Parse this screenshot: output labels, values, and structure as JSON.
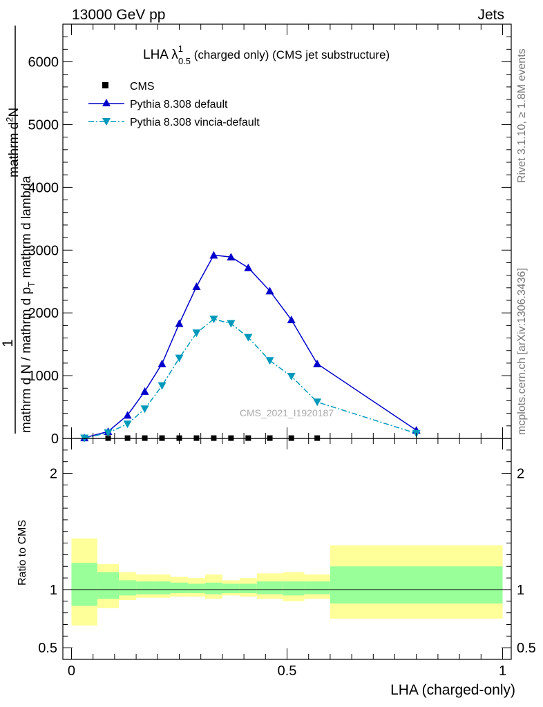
{
  "header": {
    "energy_label": "13000 GeV pp",
    "process_label": "Jets",
    "analysis_tag": "CMS_2021_I1920187",
    "rivet_version": "Rivet 3.1.10, ≥ 1.8M events",
    "source_label": "mcplots.cern.ch [arXiv:1306.3436]"
  },
  "title": {
    "main": "LHA λ",
    "sup": "1",
    "sub": "0.5",
    "rest": " (charged only) (CMS jet substructure)"
  },
  "axes": {
    "ylabel_prefix": "1",
    "ylabel_numerator_top": "mathrm d",
    "ylabel_numerator_super": "2",
    "ylabel_numerator_end": "N",
    "ylabel_denominator": "mathrm d N / mathrm d p",
    "ylabel_denominator_sub": "T",
    "ylabel_denominator_end": " mathrm d lambda",
    "ratio_ylabel": "Ratio to CMS",
    "xlabel": "LHA (charged-only)"
  },
  "legend": {
    "cms": "CMS",
    "pythia_default": "Pythia 8.308 default",
    "pythia_vincia": "Pythia 8.308 vincia-default"
  },
  "colors": {
    "pythia_default": "#0000cc",
    "pythia_vincia": "#0099bb",
    "band_inner": "#99ff99",
    "band_outer": "#ffff99",
    "cms": "#000000"
  },
  "chart_data": {
    "type": "line",
    "main_panel": {
      "ylim": [
        0,
        6600
      ],
      "xlim": [
        -0.02,
        1.02
      ],
      "yticks": [
        0,
        1000,
        2000,
        3000,
        4000,
        5000,
        6000
      ],
      "ytick_labels": [
        "0",
        "1000",
        "2000",
        "3000",
        "4000",
        "5000",
        "6000"
      ],
      "series": [
        {
          "name": "CMS",
          "marker": "square",
          "x": [
            0.085,
            0.13,
            0.17,
            0.21,
            0.25,
            0.29,
            0.33,
            0.37,
            0.41,
            0.46,
            0.51,
            0.57
          ],
          "y": [
            5,
            5,
            5,
            5,
            5,
            5,
            5,
            5,
            5,
            5,
            5,
            5
          ]
        },
        {
          "name": "Pythia 8.308 default",
          "marker": "triangle-up",
          "style": "solid",
          "x": [
            0.03,
            0.085,
            0.13,
            0.17,
            0.21,
            0.25,
            0.29,
            0.33,
            0.37,
            0.41,
            0.46,
            0.51,
            0.57,
            0.8
          ],
          "y": [
            10,
            110,
            370,
            750,
            1190,
            1830,
            2420,
            2920,
            2890,
            2720,
            2350,
            1890,
            1190,
            130
          ]
        },
        {
          "name": "Pythia 8.308 vincia-default",
          "marker": "triangle-down",
          "style": "dashdot",
          "x": [
            0.03,
            0.085,
            0.13,
            0.17,
            0.21,
            0.25,
            0.29,
            0.33,
            0.37,
            0.41,
            0.46,
            0.51,
            0.57,
            0.8
          ],
          "y": [
            5,
            90,
            230,
            470,
            840,
            1280,
            1680,
            1900,
            1830,
            1610,
            1240,
            990,
            580,
            80
          ]
        }
      ]
    },
    "ratio_panel": {
      "ylim": [
        0.4,
        2.3
      ],
      "yticks": [
        0.5,
        1,
        2
      ],
      "ytick_labels": [
        "0.5",
        "1",
        "2"
      ],
      "xticks": [
        0,
        0.5,
        1
      ],
      "xtick_labels": [
        "0",
        "0.5",
        "1"
      ],
      "reference": 1,
      "bins": [
        {
          "lo": 0.0,
          "hi": 0.06,
          "inner": [
            0.86,
            1.23
          ],
          "outer": [
            0.69,
            1.44
          ]
        },
        {
          "lo": 0.06,
          "hi": 0.11,
          "inner": [
            0.92,
            1.15
          ],
          "outer": [
            0.84,
            1.22
          ]
        },
        {
          "lo": 0.11,
          "hi": 0.15,
          "inner": [
            0.95,
            1.08
          ],
          "outer": [
            0.91,
            1.15
          ]
        },
        {
          "lo": 0.15,
          "hi": 0.19,
          "inner": [
            0.96,
            1.07
          ],
          "outer": [
            0.93,
            1.13
          ]
        },
        {
          "lo": 0.19,
          "hi": 0.23,
          "inner": [
            0.96,
            1.07
          ],
          "outer": [
            0.93,
            1.13
          ]
        },
        {
          "lo": 0.23,
          "hi": 0.27,
          "inner": [
            0.97,
            1.06
          ],
          "outer": [
            0.94,
            1.11
          ]
        },
        {
          "lo": 0.27,
          "hi": 0.31,
          "inner": [
            0.97,
            1.05
          ],
          "outer": [
            0.94,
            1.1
          ]
        },
        {
          "lo": 0.31,
          "hi": 0.35,
          "inner": [
            0.96,
            1.06
          ],
          "outer": [
            0.92,
            1.13
          ]
        },
        {
          "lo": 0.35,
          "hi": 0.39,
          "inner": [
            0.97,
            1.05
          ],
          "outer": [
            0.95,
            1.08
          ]
        },
        {
          "lo": 0.39,
          "hi": 0.43,
          "inner": [
            0.97,
            1.05
          ],
          "outer": [
            0.94,
            1.1
          ]
        },
        {
          "lo": 0.43,
          "hi": 0.49,
          "inner": [
            0.96,
            1.07
          ],
          "outer": [
            0.92,
            1.14
          ]
        },
        {
          "lo": 0.49,
          "hi": 0.54,
          "inner": [
            0.95,
            1.07
          ],
          "outer": [
            0.9,
            1.15
          ]
        },
        {
          "lo": 0.54,
          "hi": 0.6,
          "inner": [
            0.96,
            1.07
          ],
          "outer": [
            0.92,
            1.13
          ]
        },
        {
          "lo": 0.6,
          "hi": 1.0,
          "inner": [
            0.88,
            1.2
          ],
          "outer": [
            0.75,
            1.38
          ]
        }
      ]
    }
  }
}
